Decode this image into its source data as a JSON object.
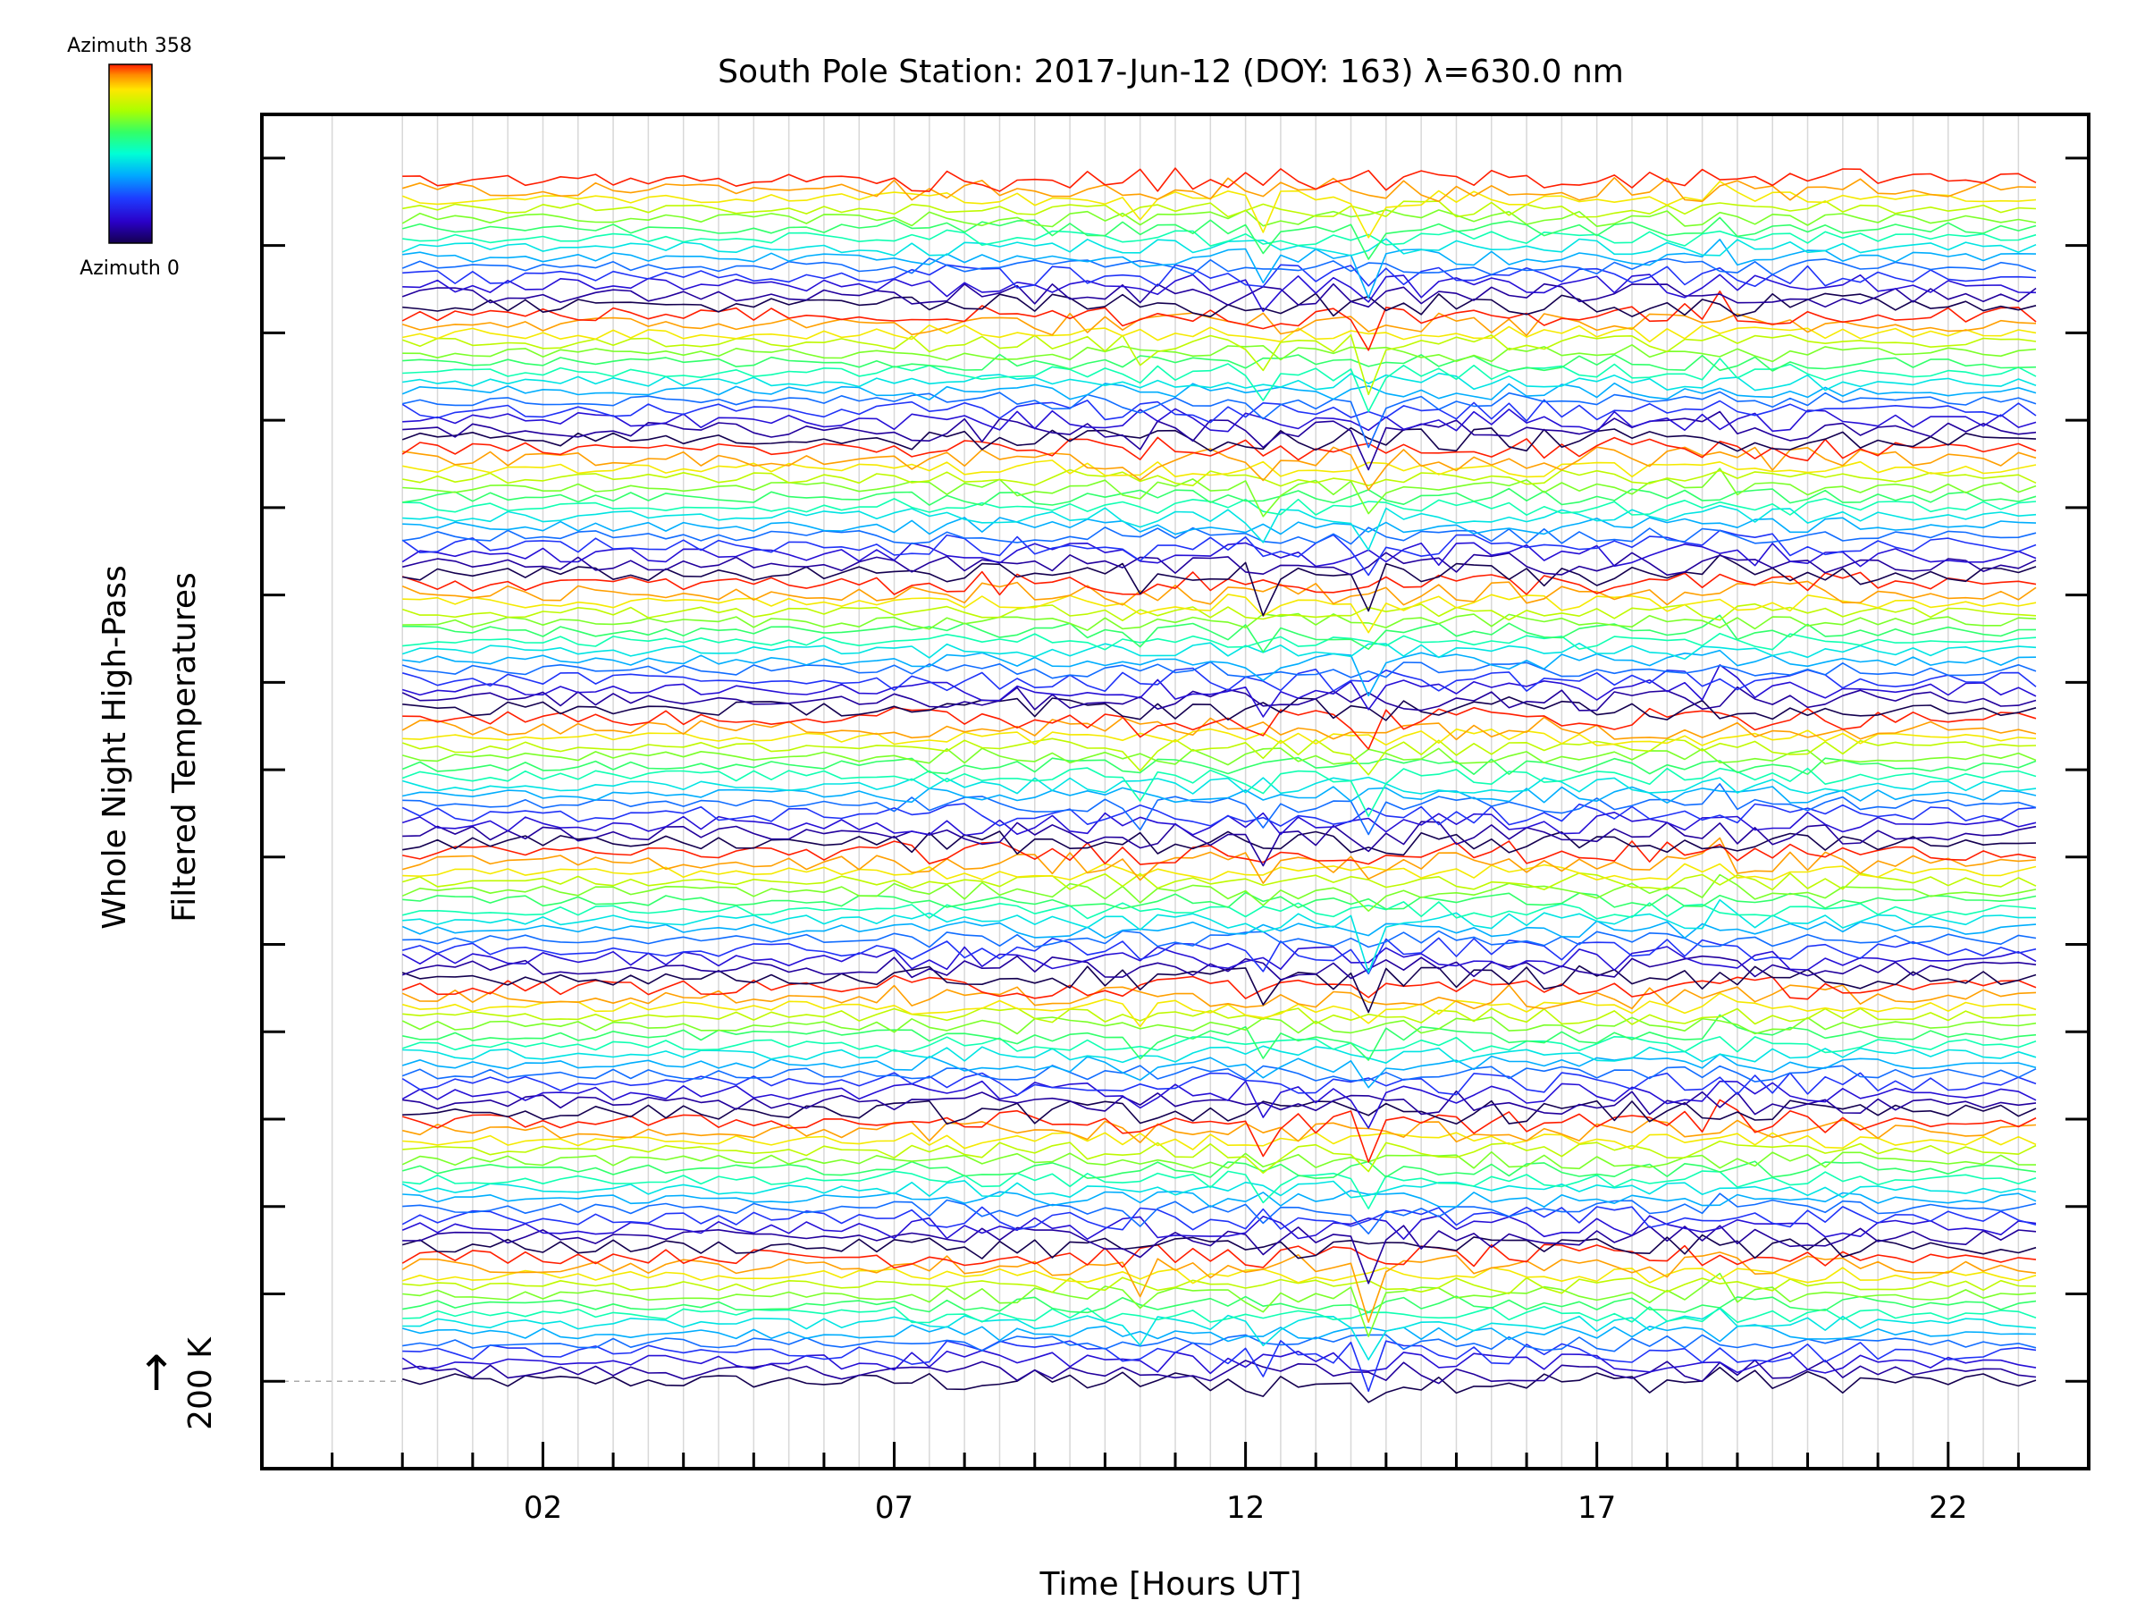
{
  "chart_data": {
    "type": "line",
    "title": "South Pole Station: 2017-Jun-12 (DOY: 163) λ=630.0 nm",
    "xlabel": "Time [Hours UT]",
    "ylabel_line1": "Whole Night High-Pass",
    "ylabel_line2": "Filtered Temperatures",
    "scale_label": "200 K",
    "scale_arrow": "↑",
    "xlim": [
      -2,
      24
    ],
    "x_major_ticks": [
      2,
      7,
      12,
      17,
      22
    ],
    "x_tick_labels": [
      "02",
      "07",
      "12",
      "17",
      "22"
    ],
    "data_x_range": [
      0,
      23.4
    ],
    "ylim": [
      -1,
      14.5
    ],
    "y_ticks": [
      0,
      1,
      2,
      3,
      4,
      5,
      6,
      7,
      8,
      9,
      10,
      11,
      12,
      13,
      14
    ],
    "baseline_level": 0,
    "series_count": 126,
    "series_spacing": 0.11,
    "azimuth_range": [
      0,
      358
    ],
    "azimuth_series_per_cycle": 14,
    "grid": true,
    "colorbar": {
      "top_label": "Azimuth 358",
      "bottom_label": "Azimuth 0",
      "colors": [
        "#ff1e00",
        "#ff8c00",
        "#ffe600",
        "#aaff00",
        "#33ff66",
        "#00ffd5",
        "#00aaff",
        "#1e3cff",
        "#2a00c8",
        "#140050"
      ]
    },
    "spikes": [
      {
        "x": 12.2,
        "amp": -0.35
      },
      {
        "x": 13.8,
        "amp": -0.55
      },
      {
        "x": 10.4,
        "amp": -0.25
      },
      {
        "x": 18.8,
        "amp": 0.2
      }
    ]
  }
}
